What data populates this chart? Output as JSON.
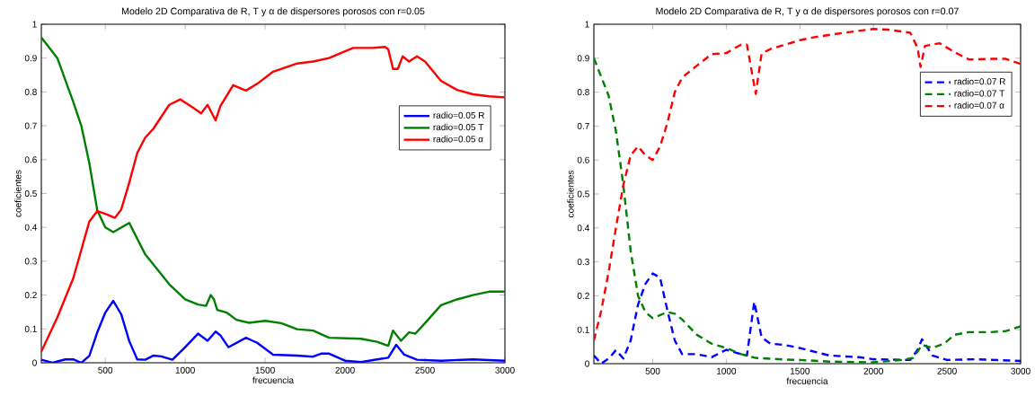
{
  "chart_data": [
    {
      "type": "line",
      "title": "Modelo 2D Comparativa de R, T y α de dispersores porosos con r=0.05",
      "xlabel": "frecuencia",
      "ylabel": "coeficientes",
      "xlim": [
        100,
        3000
      ],
      "ylim": [
        0,
        1
      ],
      "xticks": [
        500,
        1000,
        1500,
        2000,
        2500,
        3000
      ],
      "yticks": [
        0,
        0.1,
        0.2,
        0.3,
        0.4,
        0.5,
        0.6,
        0.7,
        0.8,
        0.9,
        1
      ],
      "legend": "right",
      "marker": "none",
      "line_style": "solid",
      "series": [
        {
          "name": "radio=0.05 R",
          "color": "#0000ff",
          "x": [
            100,
            170,
            250,
            300,
            350,
            400,
            450,
            500,
            550,
            600,
            650,
            700,
            750,
            800,
            850,
            920,
            1000,
            1080,
            1140,
            1190,
            1220,
            1270,
            1380,
            1450,
            1550,
            1700,
            1800,
            1850,
            1900,
            2000,
            2100,
            2200,
            2270,
            2320,
            2370,
            2450,
            2600,
            2800,
            3000
          ],
          "values": [
            0.009,
            0,
            0.01,
            0.01,
            0,
            0.02,
            0.09,
            0.148,
            0.183,
            0.143,
            0.064,
            0.01,
            0.009,
            0.021,
            0.019,
            0.009,
            0.046,
            0.086,
            0.065,
            0.092,
            0.081,
            0.046,
            0.074,
            0.059,
            0.024,
            0.021,
            0.018,
            0.027,
            0.027,
            0.006,
            0.002,
            0.01,
            0.015,
            0.053,
            0.024,
            0.009,
            0.006,
            0.01,
            0.006
          ]
        },
        {
          "name": "radio=0.05 T",
          "color": "#008000",
          "x": [
            100,
            200,
            300,
            350,
            400,
            450,
            500,
            550,
            650,
            750,
            900,
            1000,
            1080,
            1130,
            1160,
            1180,
            1200,
            1260,
            1320,
            1400,
            1500,
            1600,
            1700,
            1800,
            1900,
            2100,
            2200,
            2270,
            2300,
            2350,
            2400,
            2440,
            2500,
            2600,
            2700,
            2800,
            2900,
            3000
          ],
          "values": [
            0.961,
            0.9,
            0.77,
            0.7,
            0.59,
            0.45,
            0.4,
            0.386,
            0.413,
            0.32,
            0.232,
            0.187,
            0.172,
            0.168,
            0.2,
            0.187,
            0.156,
            0.148,
            0.127,
            0.118,
            0.124,
            0.117,
            0.099,
            0.095,
            0.074,
            0.071,
            0.062,
            0.05,
            0.095,
            0.065,
            0.09,
            0.086,
            0.117,
            0.17,
            0.187,
            0.2,
            0.21,
            0.21
          ]
        },
        {
          "name": "radio=0.05 α",
          "color": "#ff0000",
          "x": [
            100,
            200,
            300,
            400,
            450,
            500,
            560,
            600,
            650,
            700,
            750,
            800,
            900,
            970,
            1050,
            1100,
            1140,
            1190,
            1220,
            1300,
            1380,
            1450,
            1550,
            1700,
            1800,
            1900,
            2000,
            2050,
            2170,
            2250,
            2270,
            2300,
            2330,
            2360,
            2400,
            2450,
            2500,
            2600,
            2700,
            2800,
            2900,
            3000
          ],
          "values": [
            0.033,
            0.134,
            0.25,
            0.417,
            0.448,
            0.44,
            0.428,
            0.453,
            0.532,
            0.62,
            0.665,
            0.691,
            0.762,
            0.778,
            0.753,
            0.737,
            0.762,
            0.716,
            0.758,
            0.82,
            0.804,
            0.824,
            0.86,
            0.884,
            0.89,
            0.9,
            0.92,
            0.93,
            0.93,
            0.933,
            0.926,
            0.868,
            0.868,
            0.905,
            0.89,
            0.905,
            0.89,
            0.833,
            0.806,
            0.793,
            0.787,
            0.784
          ]
        }
      ]
    },
    {
      "type": "line",
      "title": "Modelo 2D Comparativa de R, T y α de dispersores porosos con r=0.07",
      "xlabel": "frecuencia",
      "ylabel": "coeficientes",
      "xlim": [
        100,
        3000
      ],
      "ylim": [
        0,
        1
      ],
      "xticks": [
        500,
        1000,
        1500,
        2000,
        2500,
        3000
      ],
      "yticks": [
        0,
        0.1,
        0.2,
        0.3,
        0.4,
        0.5,
        0.6,
        0.7,
        0.8,
        0.9,
        1
      ],
      "legend": "top right",
      "marker": "none",
      "line_style": "dashed",
      "series": [
        {
          "name": "radio=0.07 R",
          "color": "#0000ff",
          "x": [
            100,
            150,
            200,
            250,
            300,
            350,
            400,
            450,
            500,
            550,
            600,
            650,
            700,
            800,
            900,
            1000,
            1100,
            1140,
            1190,
            1240,
            1300,
            1400,
            1500,
            1700,
            1900,
            2000,
            2250,
            2300,
            2330,
            2400,
            2500,
            2700,
            3000
          ],
          "values": [
            0.024,
            0,
            0.015,
            0.04,
            0.015,
            0.068,
            0.174,
            0.235,
            0.266,
            0.253,
            0.156,
            0.068,
            0.028,
            0.028,
            0.019,
            0.041,
            0.028,
            0.024,
            0.182,
            0.077,
            0.059,
            0.055,
            0.046,
            0.024,
            0.019,
            0.013,
            0.011,
            0.041,
            0.072,
            0.024,
            0.011,
            0.013,
            0.008
          ]
        },
        {
          "name": "radio=0.07 T",
          "color": "#008000",
          "x": [
            100,
            200,
            250,
            300,
            350,
            400,
            450,
            500,
            600,
            650,
            700,
            800,
            900,
            1000,
            1100,
            1200,
            1400,
            1500,
            1700,
            2000,
            2200,
            2270,
            2330,
            2400,
            2480,
            2550,
            2650,
            2800,
            2900,
            3000
          ],
          "values": [
            0.9,
            0.79,
            0.685,
            0.526,
            0.332,
            0.2,
            0.152,
            0.134,
            0.152,
            0.147,
            0.13,
            0.085,
            0.059,
            0.046,
            0.028,
            0.017,
            0.012,
            0.011,
            0.006,
            0.004,
            0.011,
            0.017,
            0.055,
            0.046,
            0.059,
            0.085,
            0.093,
            0.093,
            0.096,
            0.11
          ]
        },
        {
          "name": "radio=0.07 α",
          "color": "#ff0000",
          "x": [
            100,
            150,
            200,
            250,
            300,
            350,
            400,
            450,
            500,
            550,
            600,
            650,
            700,
            800,
            900,
            1000,
            1100,
            1140,
            1200,
            1240,
            1300,
            1400,
            1500,
            1600,
            1800,
            2000,
            2100,
            2250,
            2300,
            2320,
            2350,
            2450,
            2550,
            2650,
            2800,
            2900,
            3000
          ],
          "values": [
            0.068,
            0.156,
            0.27,
            0.4,
            0.526,
            0.614,
            0.64,
            0.614,
            0.6,
            0.64,
            0.71,
            0.8,
            0.843,
            0.878,
            0.912,
            0.915,
            0.94,
            0.94,
            0.795,
            0.914,
            0.927,
            0.94,
            0.953,
            0.962,
            0.975,
            0.986,
            0.984,
            0.975,
            0.93,
            0.874,
            0.936,
            0.944,
            0.918,
            0.896,
            0.898,
            0.898,
            0.883
          ]
        }
      ]
    }
  ]
}
